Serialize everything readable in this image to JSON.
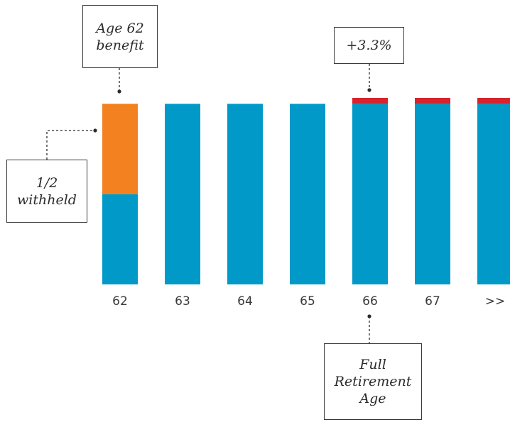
{
  "chart_data": {
    "type": "bar",
    "title": "",
    "xlabel": "",
    "ylabel": "",
    "categories": [
      "62",
      "63",
      "64",
      "65",
      "66",
      "67",
      ">>"
    ],
    "series": [
      {
        "name": "",
        "color": "#0099c8",
        "values": [
          50,
          100,
          100,
          100,
          100,
          100,
          100
        ]
      },
      {
        "name": "",
        "color": "#f38120",
        "values": [
          50,
          0,
          0,
          0,
          0,
          0,
          0
        ]
      },
      {
        "name": "",
        "color": "#d8232f",
        "values": [
          0,
          0,
          0,
          0,
          3.3,
          3.3,
          3.3
        ]
      }
    ],
    "ylim": [
      0,
      103.3
    ],
    "grid": false
  },
  "annotations": {
    "age62_benefit": "Age 62\nbenefit",
    "half_withheld": "1/2\nwithheld",
    "plus_pct": "+3.3%",
    "full_retirement_age": "Full\nRetirement\nAge"
  }
}
